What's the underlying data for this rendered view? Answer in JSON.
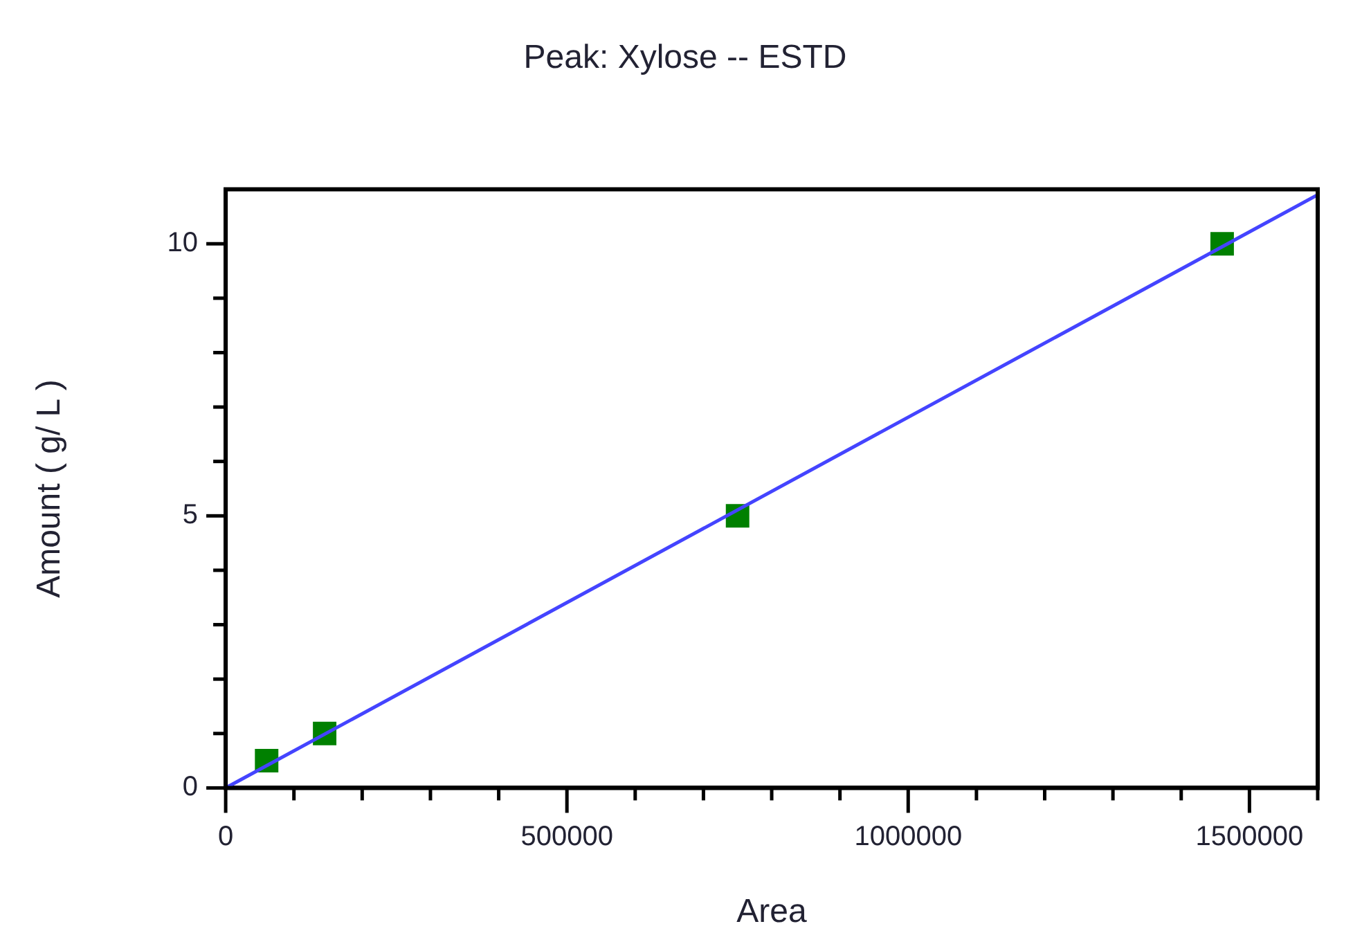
{
  "chart_data": {
    "type": "scatter",
    "title": "Peak: Xylose -- ESTD",
    "xlabel": "Area",
    "ylabel": "Amount ( g/ L )",
    "xlim": [
      0,
      1600000
    ],
    "ylim": [
      0,
      11
    ],
    "xticks": [
      0,
      {
        "value": 100000,
        "label": null
      },
      {
        "value": 200000,
        "label": null
      },
      {
        "value": 300000,
        "label": null
      },
      {
        "value": 400000,
        "label": null
      },
      500000,
      {
        "value": 600000,
        "label": null
      },
      {
        "value": 700000,
        "label": null
      },
      {
        "value": 800000,
        "label": null
      },
      {
        "value": 900000,
        "label": null
      },
      1000000,
      {
        "value": 1100000,
        "label": null
      },
      {
        "value": 1200000,
        "label": null
      },
      {
        "value": 1300000,
        "label": null
      },
      {
        "value": 1400000,
        "label": null
      },
      1500000,
      {
        "value": 1600000,
        "label": null
      }
    ],
    "yticks": [
      0,
      {
        "value": 1,
        "label": null
      },
      {
        "value": 2,
        "label": null
      },
      {
        "value": 3,
        "label": null
      },
      {
        "value": 4,
        "label": null
      },
      5,
      {
        "value": 6,
        "label": null
      },
      {
        "value": 7,
        "label": null
      },
      {
        "value": 8,
        "label": null
      },
      {
        "value": 9,
        "label": null
      },
      10
    ],
    "grid": false,
    "legend": false,
    "series": [
      {
        "color": "#008000",
        "marker": "square",
        "x": [
          60000,
          145000,
          750000,
          1460000
        ],
        "values": [
          0.5,
          1,
          5,
          10
        ]
      },
      {
        "type": "line",
        "color": "#4444ff",
        "marker": "none",
        "line_style": "solid",
        "x": [
          0,
          1600000
        ],
        "values": [
          0,
          10.9
        ]
      }
    ]
  }
}
